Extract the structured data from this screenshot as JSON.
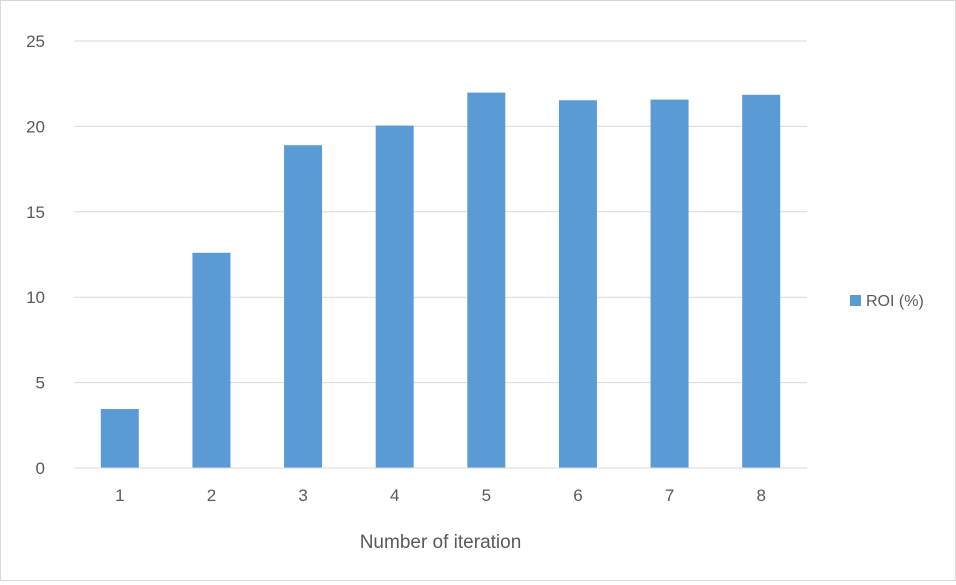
{
  "chart_data": {
    "type": "bar",
    "title": "",
    "xlabel": "Number of iteration",
    "ylabel": "",
    "categories": [
      "1",
      "2",
      "3",
      "4",
      "5",
      "6",
      "7",
      "8"
    ],
    "series": [
      {
        "name": "ROI (%)",
        "color": "#5b9bd5",
        "values": [
          3.45,
          12.6,
          18.9,
          20.05,
          21.98,
          21.53,
          21.57,
          21.85
        ]
      }
    ],
    "ylim": [
      0,
      25
    ],
    "yticks": [
      "0",
      "5",
      "10",
      "15",
      "20",
      "25"
    ],
    "grid": true,
    "legend_position": "right"
  }
}
